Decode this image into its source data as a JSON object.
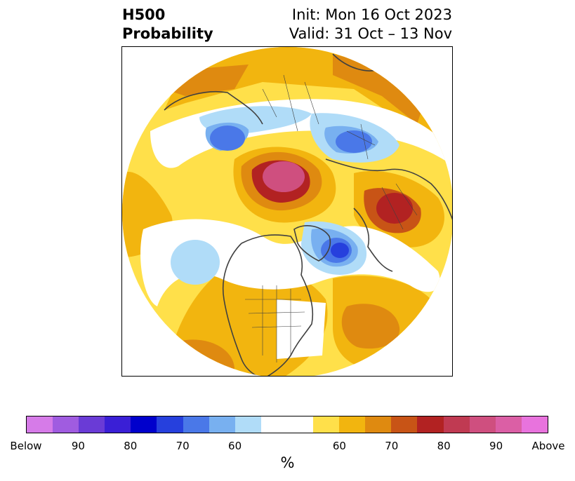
{
  "title": {
    "line1": "H500",
    "line2": "Probability"
  },
  "init_text": "Init: Mon 16 Oct 2023",
  "valid_text": "Valid: 31 Oct – 13 Nov",
  "colorbar": {
    "units": "%",
    "tick_labels": [
      "Below",
      "90",
      "80",
      "70",
      "60",
      "60",
      "70",
      "80",
      "90",
      "Above"
    ],
    "below_colors": [
      "#d67be8",
      "#a05ce0",
      "#6a3bd6",
      "#3a1fd6",
      "#0000cc",
      "#2640dd",
      "#4a78e8",
      "#78b0f0",
      "#b0dcf8"
    ],
    "neutral_color": "#ffffff",
    "above_colors": [
      "#ffe04a",
      "#f2b50f",
      "#df8a10",
      "#c85416",
      "#b22222",
      "#c03a52",
      "#cf4f7f",
      "#db5fa5",
      "#e873dd"
    ]
  },
  "colors": {
    "coastline": "#404040",
    "border": "#000000"
  }
}
